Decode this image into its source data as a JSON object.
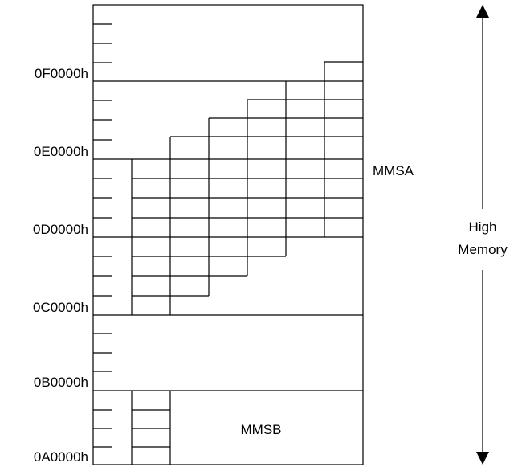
{
  "address_labels": [
    "0F0000h",
    "0E0000h",
    "0D0000h",
    "0C0000h",
    "0B0000h",
    "0A0000h"
  ],
  "region_labels": {
    "mmsa": "MMSA",
    "mmsb": "MMSB"
  },
  "side_label": {
    "line1": "High",
    "line2": "Memory"
  },
  "colors": {
    "line": "#000000",
    "background": "#ffffff"
  }
}
